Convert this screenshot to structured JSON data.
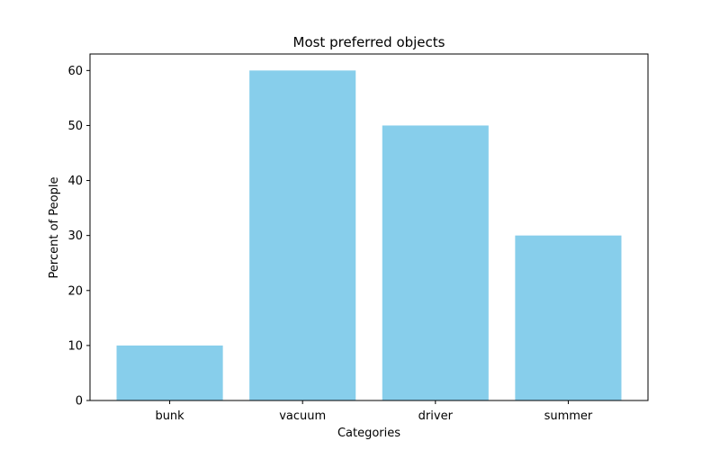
{
  "chart_data": {
    "type": "bar",
    "title": "Most preferred objects",
    "xlabel": "Categories",
    "ylabel": "Percent of People",
    "categories": [
      "bunk",
      "vacuum",
      "driver",
      "summer"
    ],
    "values": [
      10,
      60,
      50,
      30
    ],
    "ylim": [
      0,
      63
    ],
    "yticks": [
      0,
      10,
      20,
      30,
      40,
      50,
      60
    ],
    "grid": false,
    "bar_color": "#87ceeb"
  }
}
